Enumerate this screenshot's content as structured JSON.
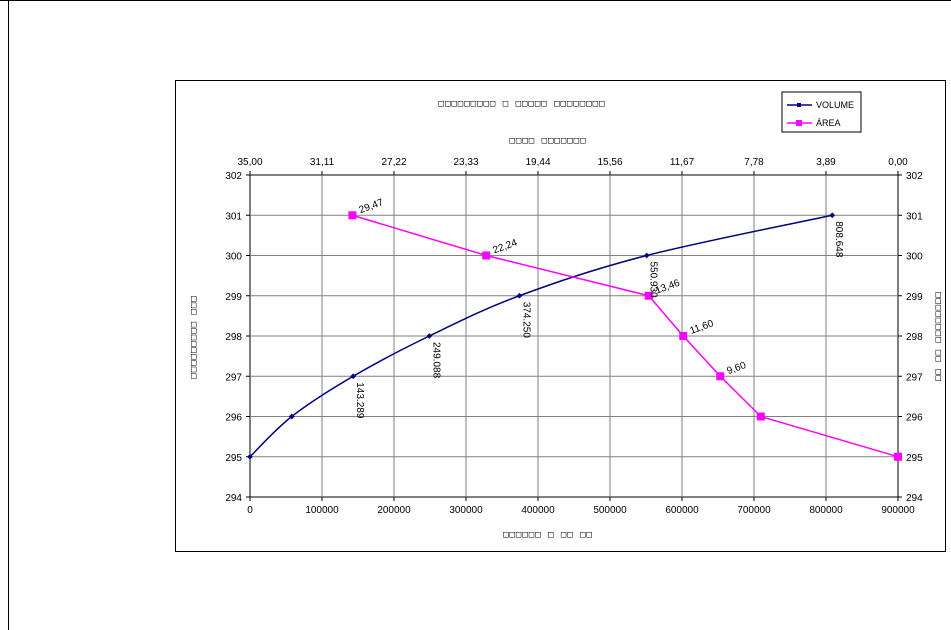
{
  "chart_data": {
    "type": "line",
    "title": "□□□□□□□□□ □ □□□□□ □□□□□□□□",
    "top_axis_title": "□□□□ □□□□□□□",
    "bottom_axis_title": "□□□□□□ □ □□ □□",
    "left_axis_title": "□□□□□□□□□ □□□",
    "right_axis_title": "□□□□□□□□ □□ □□",
    "x_bottom": {
      "min": 0,
      "max": 900000,
      "ticks": [
        "0",
        "100000",
        "200000",
        "300000",
        "400000",
        "500000",
        "600000",
        "700000",
        "800000",
        "900000"
      ]
    },
    "x_top": {
      "min": 35.0,
      "max": 0.0,
      "reversed": true,
      "ticks": [
        "35,00",
        "31,11",
        "27,22",
        "23,33",
        "19,44",
        "15,56",
        "11,67",
        "7,78",
        "3,89",
        "0,00"
      ]
    },
    "y": {
      "min": 294,
      "max": 302,
      "ticks": [
        "294",
        "295",
        "296",
        "297",
        "298",
        "299",
        "300",
        "301",
        "302"
      ]
    },
    "grid": true,
    "legend_position": "top-right",
    "series": [
      {
        "name": "VOLUME",
        "axis": "bottom",
        "color": "#000080",
        "marker": "diamond",
        "points": [
          {
            "x": 0,
            "y": 295
          },
          {
            "x": 58000,
            "y": 296
          },
          {
            "x": 143289,
            "y": 297,
            "label": "143.289"
          },
          {
            "x": 249088,
            "y": 298,
            "label": "249.088"
          },
          {
            "x": 374250,
            "y": 299,
            "label": "374.250"
          },
          {
            "x": 550930,
            "y": 300,
            "label": "550.930"
          },
          {
            "x": 808648,
            "y": 301,
            "label": "808.648"
          }
        ]
      },
      {
        "name": "ÁREA",
        "axis": "top",
        "color": "#ff00ff",
        "marker": "square",
        "points": [
          {
            "x": 0.0,
            "y": 295
          },
          {
            "x": 7.41,
            "y": 296
          },
          {
            "x": 9.6,
            "y": 297,
            "label": "9,60"
          },
          {
            "x": 11.6,
            "y": 298,
            "label": "11,60"
          },
          {
            "x": 13.46,
            "y": 299,
            "label": "13,46"
          },
          {
            "x": 22.24,
            "y": 300,
            "label": "22,24"
          },
          {
            "x": 29.47,
            "y": 301,
            "label": "29,47"
          }
        ]
      }
    ]
  }
}
